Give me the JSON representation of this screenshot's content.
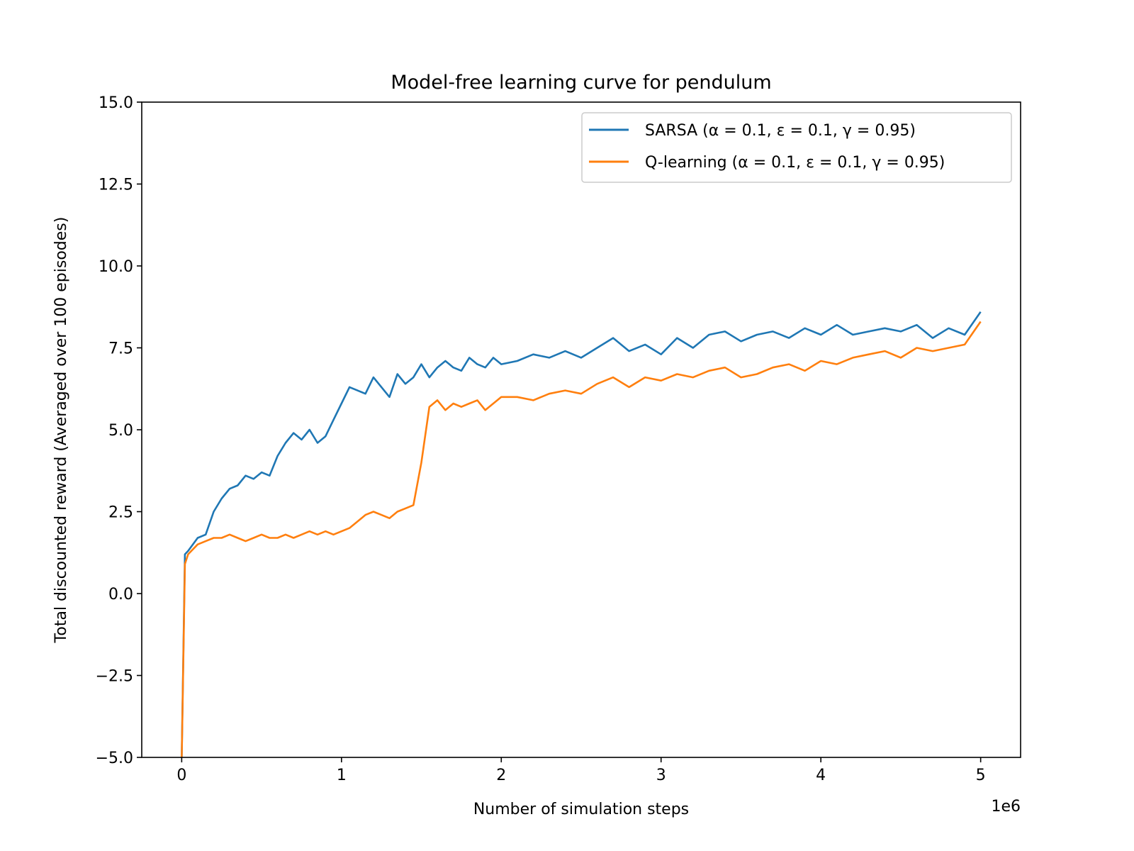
{
  "chart_data": {
    "type": "line",
    "title": "Model-free learning curve for pendulum",
    "xlabel": "Number of simulation steps",
    "ylabel": "Total discounted reward (Averaged over 100 episodes)",
    "x_offset_label": "1e6",
    "xlim": [
      -0.25,
      5.25
    ],
    "ylim": [
      -5.0,
      15.0
    ],
    "x_ticks": [
      0,
      1,
      2,
      3,
      4,
      5
    ],
    "x_tick_labels": [
      "0",
      "1",
      "2",
      "3",
      "4",
      "5"
    ],
    "y_ticks": [
      -5.0,
      -2.5,
      0.0,
      2.5,
      5.0,
      7.5,
      10.0,
      12.5,
      15.0
    ],
    "y_tick_labels": [
      "−5.0",
      "−2.5",
      "0.0",
      "2.5",
      "5.0",
      "7.5",
      "10.0",
      "12.5",
      "15.0"
    ],
    "grid": false,
    "legend_position": "top-right",
    "x": [
      0,
      0.02,
      0.04,
      0.1,
      0.15,
      0.2,
      0.25,
      0.3,
      0.35,
      0.4,
      0.45,
      0.5,
      0.55,
      0.6,
      0.65,
      0.7,
      0.75,
      0.8,
      0.85,
      0.9,
      0.95,
      1.0,
      1.05,
      1.1,
      1.15,
      1.2,
      1.25,
      1.3,
      1.35,
      1.4,
      1.45,
      1.5,
      1.55,
      1.6,
      1.65,
      1.7,
      1.75,
      1.8,
      1.85,
      1.9,
      1.95,
      2.0,
      2.1,
      2.2,
      2.3,
      2.4,
      2.5,
      2.6,
      2.7,
      2.8,
      2.9,
      3.0,
      3.1,
      3.2,
      3.3,
      3.4,
      3.5,
      3.6,
      3.7,
      3.8,
      3.9,
      4.0,
      4.1,
      4.2,
      4.3,
      4.4,
      4.5,
      4.6,
      4.7,
      4.8,
      4.9,
      5.0
    ],
    "series": [
      {
        "name": "SARSA (α = 0.1, ε = 0.1, γ = 0.95)",
        "color": "#1f77b4",
        "values": [
          -5.0,
          1.2,
          1.3,
          1.7,
          1.8,
          2.5,
          2.9,
          3.2,
          3.3,
          3.6,
          3.5,
          3.7,
          3.6,
          4.2,
          4.6,
          4.9,
          4.7,
          5.0,
          4.6,
          4.8,
          5.3,
          5.8,
          6.3,
          6.2,
          6.1,
          6.6,
          6.3,
          6.0,
          6.7,
          6.4,
          6.6,
          7.0,
          6.6,
          6.9,
          7.1,
          6.9,
          6.8,
          7.2,
          7.0,
          6.9,
          7.2,
          7.0,
          7.1,
          7.3,
          7.2,
          7.4,
          7.2,
          7.5,
          7.8,
          7.4,
          7.6,
          7.3,
          7.8,
          7.5,
          7.9,
          8.0,
          7.7,
          7.9,
          8.0,
          7.8,
          8.1,
          7.9,
          8.2,
          7.9,
          8.0,
          8.1,
          8.0,
          8.2,
          7.8,
          8.1,
          7.9,
          8.6
        ]
      },
      {
        "name": "Q-learning (α = 0.1, ε = 0.1, γ = 0.95)",
        "color": "#ff7f0e",
        "values": [
          -5.0,
          0.9,
          1.2,
          1.5,
          1.6,
          1.7,
          1.7,
          1.8,
          1.7,
          1.6,
          1.7,
          1.8,
          1.7,
          1.7,
          1.8,
          1.7,
          1.8,
          1.9,
          1.8,
          1.9,
          1.8,
          1.9,
          2.0,
          2.2,
          2.4,
          2.5,
          2.4,
          2.3,
          2.5,
          2.6,
          2.7,
          4.0,
          5.7,
          5.9,
          5.6,
          5.8,
          5.7,
          5.8,
          5.9,
          5.6,
          5.8,
          6.0,
          6.0,
          5.9,
          6.1,
          6.2,
          6.1,
          6.4,
          6.6,
          6.3,
          6.6,
          6.5,
          6.7,
          6.6,
          6.8,
          6.9,
          6.6,
          6.7,
          6.9,
          7.0,
          6.8,
          7.1,
          7.0,
          7.2,
          7.3,
          7.4,
          7.2,
          7.5,
          7.4,
          7.5,
          7.6,
          8.3
        ]
      }
    ]
  }
}
